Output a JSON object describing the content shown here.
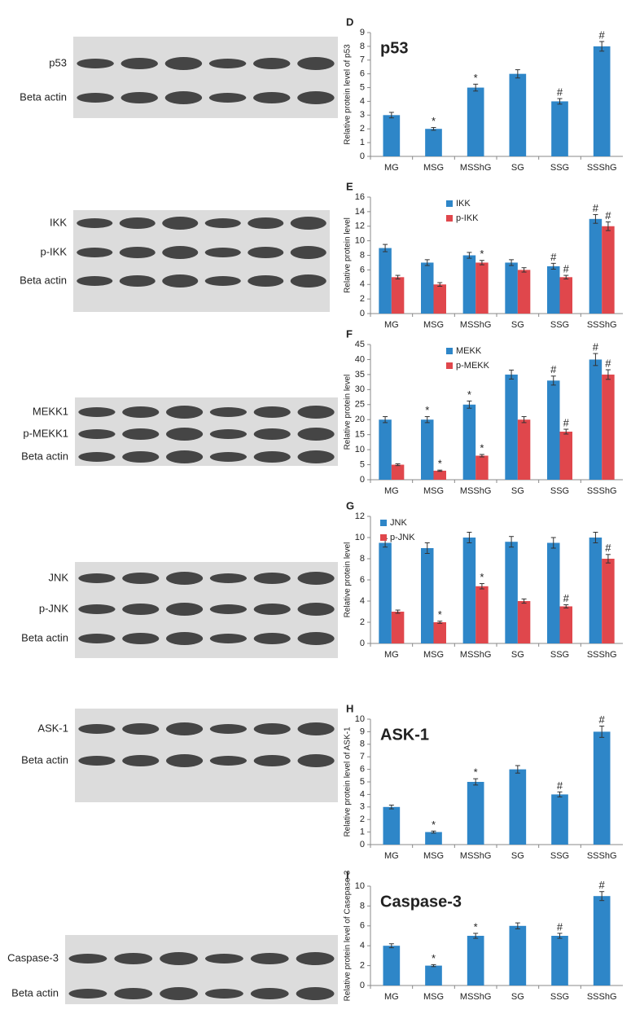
{
  "chart_data": [
    {
      "type": "bar",
      "label": "D",
      "title": "p53",
      "ylabel": "Relative protein level of p53",
      "categories": [
        "MG",
        "MSG",
        "MSShG",
        "SG",
        "SSG",
        "SSShG"
      ],
      "values": [
        3,
        2,
        5,
        6,
        4,
        8
      ],
      "errors": [
        0.2,
        0.1,
        0.25,
        0.3,
        0.2,
        0.35
      ],
      "marks": [
        null,
        "*",
        "*",
        null,
        "#",
        "#"
      ],
      "color": "#2e86c8",
      "ylim": [
        0,
        9
      ],
      "yticks": [
        0,
        1,
        2,
        3,
        4,
        5,
        6,
        7,
        8,
        9
      ]
    },
    {
      "type": "bar",
      "label": "E",
      "ylabel": "Relative protein level",
      "categories": [
        "MG",
        "MSG",
        "MSShG",
        "SG",
        "SSG",
        "SSShG"
      ],
      "legend": "upper center",
      "series": [
        {
          "name": "IKK",
          "color": "#2e86c8",
          "values": [
            9,
            7,
            8,
            7,
            6.5,
            13
          ],
          "errors": [
            0.5,
            0.4,
            0.4,
            0.4,
            0.4,
            0.6
          ],
          "marks": [
            null,
            null,
            null,
            null,
            "#",
            "#"
          ]
        },
        {
          "name": "p-IKK",
          "color": "#e0474c",
          "values": [
            5,
            4,
            7,
            6,
            5,
            12
          ],
          "errors": [
            0.25,
            0.25,
            0.3,
            0.3,
            0.25,
            0.6
          ],
          "marks": [
            null,
            null,
            "*",
            null,
            "#",
            "#"
          ]
        }
      ],
      "ylim": [
        0,
        16
      ],
      "yticks": [
        0,
        2,
        4,
        6,
        8,
        10,
        12,
        14,
        16
      ]
    },
    {
      "type": "bar",
      "label": "F",
      "ylabel": "Relative protein level",
      "categories": [
        "MG",
        "MSG",
        "MSShG",
        "SG",
        "SSG",
        "SSShG"
      ],
      "legend": "upper center",
      "series": [
        {
          "name": "MEKK",
          "color": "#2e86c8",
          "values": [
            20,
            20,
            25,
            35,
            33,
            40
          ],
          "errors": [
            1,
            1,
            1.2,
            1.5,
            1.5,
            2
          ],
          "marks": [
            null,
            "*",
            "*",
            null,
            "#",
            "#"
          ]
        },
        {
          "name": "p-MEKK",
          "color": "#e0474c",
          "values": [
            5,
            3,
            8,
            20,
            16,
            35
          ],
          "errors": [
            0.3,
            0.2,
            0.4,
            1,
            0.8,
            1.6
          ],
          "marks": [
            null,
            "*",
            "*",
            null,
            "#",
            "#"
          ]
        }
      ],
      "ylim": [
        0,
        45
      ],
      "yticks": [
        0,
        5,
        10,
        15,
        20,
        25,
        30,
        35,
        40,
        45
      ]
    },
    {
      "type": "bar",
      "label": "G",
      "ylabel": "Relative protein level",
      "categories": [
        "MG",
        "MSG",
        "MSShG",
        "SG",
        "SSG",
        "SSShG"
      ],
      "legend": "upper left",
      "series": [
        {
          "name": "JNK",
          "color": "#2e86c8",
          "values": [
            9.5,
            9,
            10,
            9.6,
            9.5,
            10
          ],
          "errors": [
            0.4,
            0.5,
            0.5,
            0.5,
            0.5,
            0.5
          ],
          "marks": [
            null,
            null,
            null,
            null,
            null,
            null
          ]
        },
        {
          "name": "p-JNK",
          "color": "#e0474c",
          "values": [
            3,
            2,
            5.4,
            4,
            3.5,
            8
          ],
          "errors": [
            0.15,
            0.1,
            0.25,
            0.2,
            0.15,
            0.4
          ],
          "marks": [
            null,
            "*",
            "*",
            null,
            "#",
            "#"
          ]
        }
      ],
      "ylim": [
        0,
        12
      ],
      "yticks": [
        0,
        2,
        4,
        6,
        8,
        10,
        12
      ]
    },
    {
      "type": "bar",
      "label": "H",
      "title": "ASK-1",
      "ylabel": "Relative protein level of ASK-1",
      "categories": [
        "MG",
        "MSG",
        "MSShG",
        "SG",
        "SSG",
        "SSShG"
      ],
      "values": [
        3,
        1,
        5,
        6,
        4,
        9
      ],
      "errors": [
        0.15,
        0.08,
        0.25,
        0.3,
        0.2,
        0.45
      ],
      "marks": [
        null,
        "*",
        "*",
        null,
        "#",
        "#"
      ],
      "color": "#2e86c8",
      "ylim": [
        0,
        10
      ],
      "yticks": [
        0,
        1,
        2,
        3,
        4,
        5,
        6,
        7,
        8,
        9,
        10
      ]
    },
    {
      "type": "bar",
      "label": "I",
      "title": "Caspase-3",
      "ylabel": "Relative protein level of Casepase-3",
      "categories": [
        "MG",
        "MSG",
        "MSShG",
        "SG",
        "SSG",
        "SSShG"
      ],
      "values": [
        4,
        2,
        5,
        6,
        5,
        9
      ],
      "errors": [
        0.2,
        0.1,
        0.25,
        0.3,
        0.25,
        0.45
      ],
      "marks": [
        null,
        "*",
        "*",
        null,
        "#",
        "#"
      ],
      "color": "#2e86c8",
      "ylim": [
        0,
        10
      ],
      "yticks": [
        0,
        2,
        4,
        6,
        8,
        10
      ]
    }
  ],
  "blots": [
    {
      "labels": [
        "p53",
        "Beta actin"
      ]
    },
    {
      "labels": [
        "IKK",
        "p-IKK",
        "Beta actin"
      ]
    },
    {
      "labels": [
        "MEKK1",
        "p-MEKK1",
        "Beta actin"
      ]
    },
    {
      "labels": [
        "JNK",
        "p-JNK",
        "Beta actin"
      ]
    },
    {
      "labels": [
        "ASK-1",
        "Beta actin"
      ]
    },
    {
      "labels": [
        "Caspase-3",
        "Beta actin"
      ]
    }
  ]
}
